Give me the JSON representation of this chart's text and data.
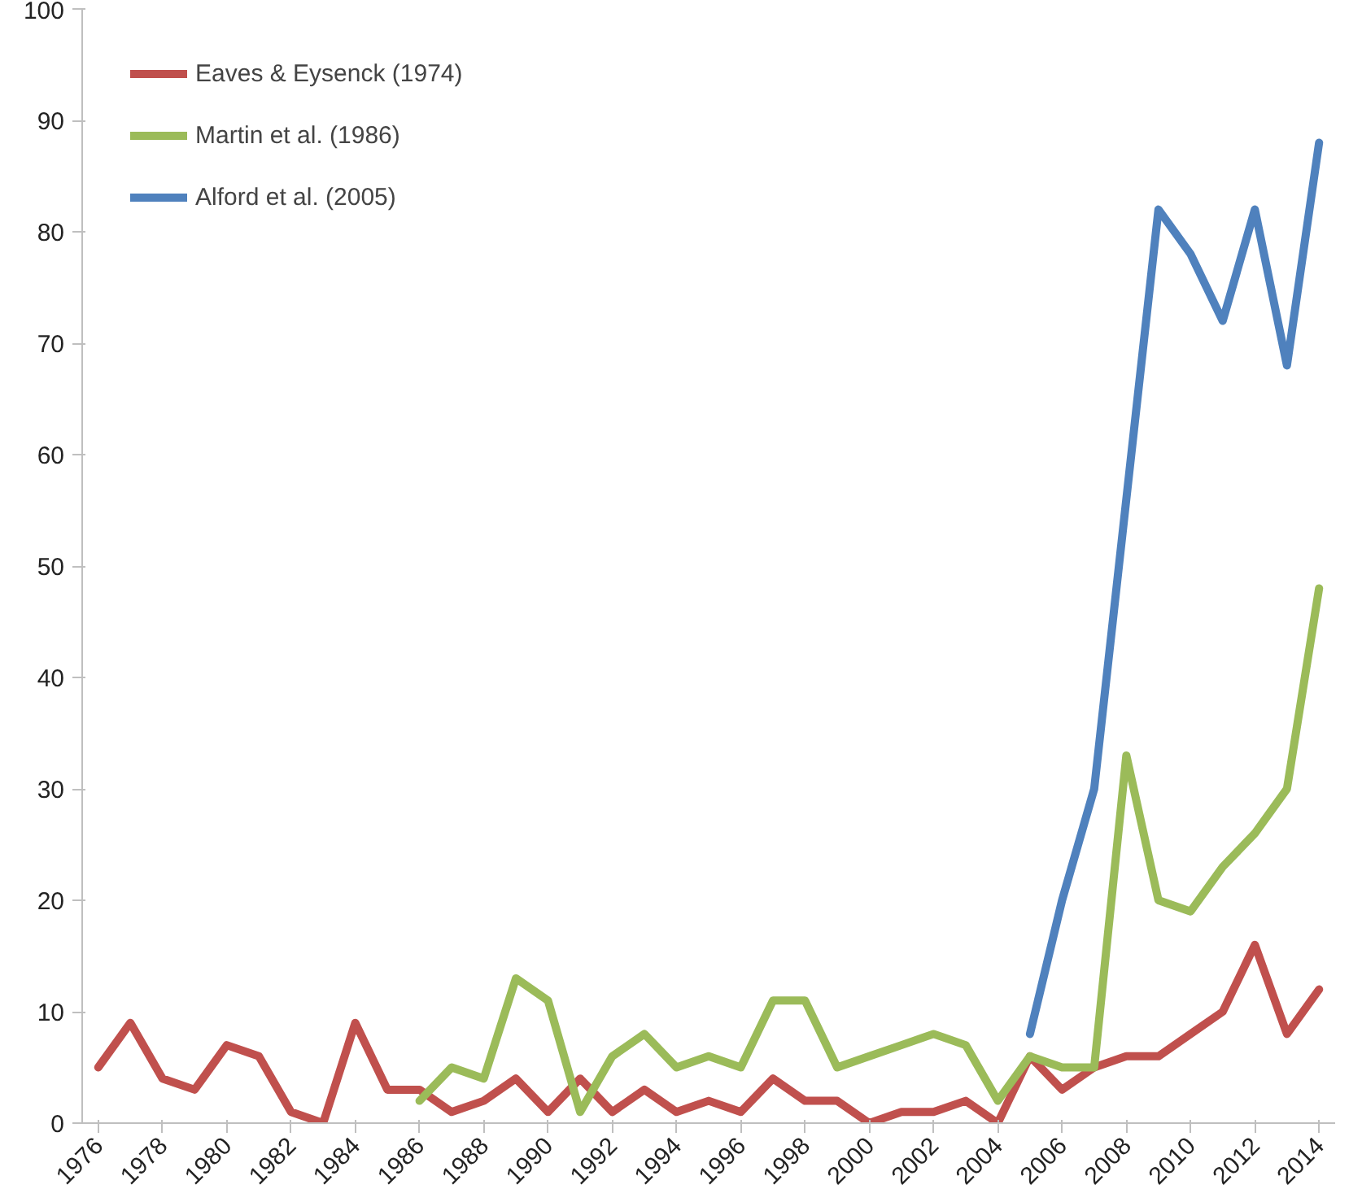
{
  "chart_data": {
    "type": "line",
    "categories": [
      "1976",
      null,
      "1978",
      null,
      "1980",
      null,
      "1982",
      null,
      "1984",
      null,
      "1986",
      null,
      "1988",
      null,
      "1990",
      null,
      "1992",
      null,
      "1994",
      null,
      "1996",
      null,
      "1998",
      null,
      "2000",
      null,
      "2002",
      null,
      "2004",
      null,
      "2006",
      null,
      "2008",
      null,
      "2010",
      null,
      "2012",
      null,
      "2014"
    ],
    "series": [
      {
        "name": "Eaves & Eysenck (1974)",
        "color": "#c0504d",
        "values": [
          5,
          9,
          4,
          3,
          7,
          6,
          1,
          0,
          9,
          3,
          3,
          1,
          2,
          4,
          1,
          4,
          1,
          3,
          1,
          2,
          1,
          4,
          2,
          2,
          0,
          1,
          1,
          2,
          0,
          6,
          3,
          5,
          6,
          6,
          8,
          10,
          16,
          8,
          12
        ]
      },
      {
        "name": "Martin et al. (1986)",
        "color": "#9bbb59",
        "values": [
          null,
          null,
          null,
          null,
          null,
          null,
          null,
          null,
          null,
          null,
          2,
          5,
          4,
          13,
          11,
          1,
          6,
          8,
          5,
          6,
          5,
          11,
          11,
          5,
          6,
          7,
          8,
          7,
          2,
          6,
          5,
          5,
          33,
          20,
          19,
          23,
          26,
          30,
          48
        ]
      },
      {
        "name": "Alford et al. (2005)",
        "color": "#4f81bd",
        "values": [
          null,
          null,
          null,
          null,
          null,
          null,
          null,
          null,
          null,
          null,
          null,
          null,
          null,
          null,
          null,
          null,
          null,
          null,
          null,
          null,
          null,
          null,
          null,
          null,
          null,
          null,
          null,
          null,
          null,
          8,
          20,
          30,
          56,
          82,
          78,
          72,
          82,
          68,
          88
        ]
      }
    ],
    "ylim": [
      0,
      100
    ],
    "yticks": [
      0,
      10,
      20,
      30,
      40,
      50,
      60,
      70,
      80,
      90,
      100
    ],
    "grid": false,
    "legend": "top left",
    "marker": "none",
    "line_style": "solid"
  }
}
